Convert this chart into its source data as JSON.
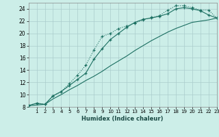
{
  "xlabel": "Humidex (Indice chaleur)",
  "bg_color": "#cceee8",
  "line_color": "#1a6e60",
  "grid_color": "#aacccc",
  "xlim": [
    0,
    23
  ],
  "ylim": [
    8,
    25
  ],
  "xtick_start": 1,
  "xticks": [
    1,
    2,
    3,
    4,
    5,
    6,
    7,
    8,
    9,
    10,
    11,
    12,
    13,
    14,
    15,
    16,
    17,
    18,
    19,
    20,
    21,
    22,
    23
  ],
  "yticks": [
    8,
    10,
    12,
    14,
    16,
    18,
    20,
    22,
    24
  ],
  "line1_x": [
    0,
    1,
    2,
    3,
    4,
    5,
    6,
    7,
    8,
    9,
    10,
    11,
    12,
    13,
    14,
    15,
    16,
    17,
    18,
    19,
    20,
    21,
    22,
    23
  ],
  "line1_y": [
    8.2,
    8.6,
    8.4,
    9.8,
    10.5,
    11.8,
    13.2,
    14.8,
    17.3,
    19.5,
    20.0,
    20.8,
    21.2,
    21.7,
    22.2,
    22.6,
    22.9,
    23.8,
    24.5,
    24.5,
    24.2,
    23.8,
    23.8,
    22.5
  ],
  "line2_x": [
    0,
    1,
    2,
    3,
    4,
    5,
    6,
    7,
    8,
    9,
    10,
    11,
    12,
    13,
    14,
    15,
    16,
    17,
    18,
    19,
    20,
    21,
    22,
    23
  ],
  "line2_y": [
    8.2,
    8.6,
    8.4,
    9.8,
    10.5,
    11.5,
    12.5,
    13.5,
    15.8,
    17.5,
    19.0,
    20.0,
    21.0,
    21.8,
    22.3,
    22.5,
    22.8,
    23.2,
    24.0,
    24.2,
    24.0,
    23.7,
    23.0,
    22.5
  ],
  "line3_x": [
    0,
    2,
    3,
    4,
    5,
    6,
    7,
    8,
    9,
    10,
    11,
    12,
    13,
    14,
    15,
    16,
    17,
    18,
    19,
    20,
    21,
    22,
    23
  ],
  "line3_y": [
    8.2,
    8.4,
    9.3,
    10.0,
    10.8,
    11.5,
    12.3,
    13.0,
    13.8,
    14.7,
    15.5,
    16.3,
    17.2,
    18.0,
    18.8,
    19.5,
    20.2,
    20.8,
    21.3,
    21.8,
    22.0,
    22.2,
    22.5
  ]
}
